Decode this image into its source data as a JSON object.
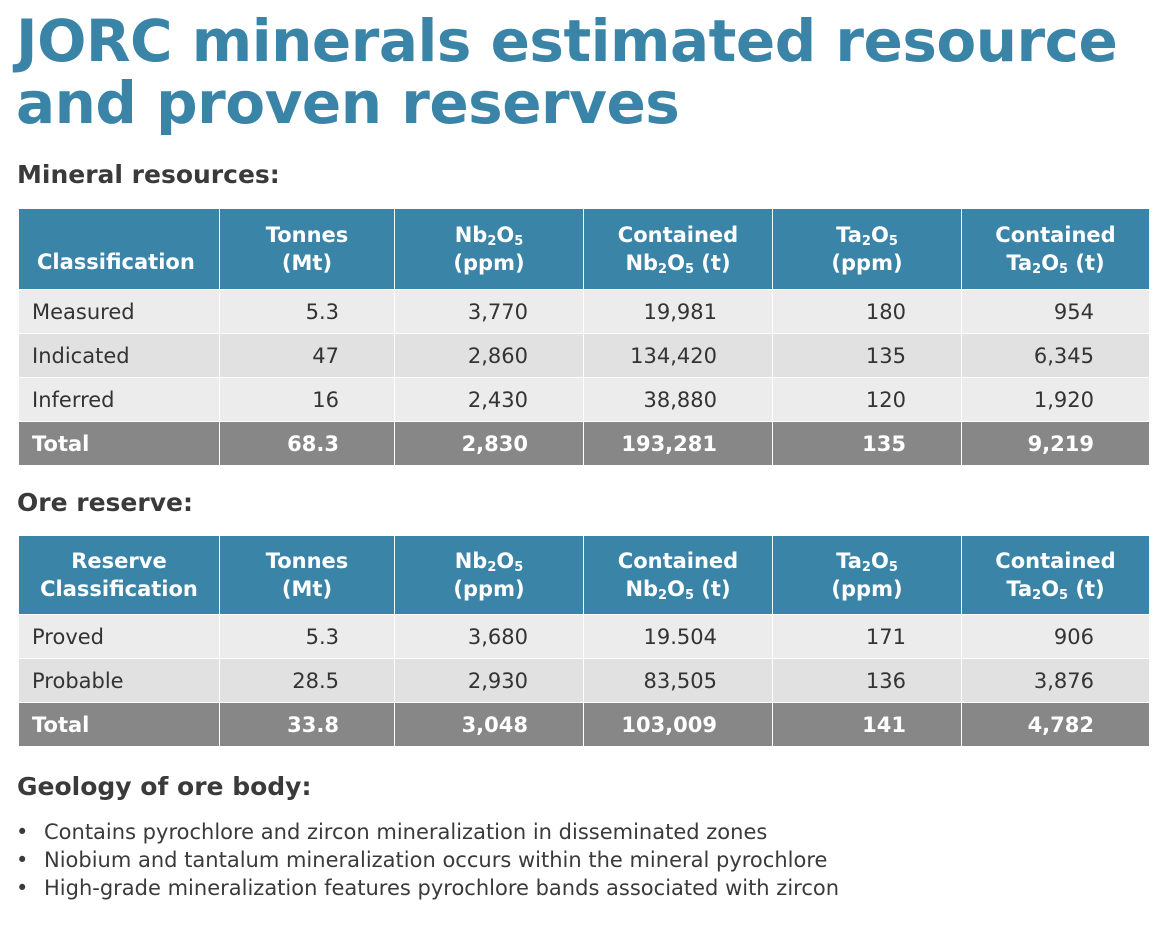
{
  "title": {
    "line1": "JORC minerals estimated resource",
    "line2": "and proven reserves"
  },
  "resources": {
    "heading": "Mineral resources:",
    "columns": [
      {
        "line1": "",
        "line2": "Classification",
        "sub2": ""
      },
      {
        "line1": "Tonnes",
        "line2": "(Mt)"
      },
      {
        "line1": "Nb",
        "sub1a": "2",
        "mid1": "O",
        "sub1b": "5",
        "line2": "(ppm)"
      },
      {
        "line1": "Contained",
        "line2a": "Nb",
        "sub2a": "2",
        "line2b": "O",
        "sub2b": "5",
        "line2c": " (t)"
      },
      {
        "line1": "Ta",
        "sub1a": "2",
        "mid1": "O",
        "sub1b": "5",
        "line2": "(ppm)"
      },
      {
        "line1": "Contained",
        "line2a": "Ta",
        "sub2a": "2",
        "line2b": "O",
        "sub2b": "5",
        "line2c": " (t)"
      }
    ],
    "rows": [
      {
        "classification": "Measured",
        "tonnes": "5.3",
        "nb2o5": "3,770",
        "contained_nb2o5": "19,981",
        "ta2o5": "180",
        "contained_ta2o5": "954"
      },
      {
        "classification": "Indicated",
        "tonnes": "47",
        "nb2o5": "2,860",
        "contained_nb2o5": "134,420",
        "ta2o5": "135",
        "contained_ta2o5": "6,345"
      },
      {
        "classification": "Inferred",
        "tonnes": "16",
        "nb2o5": "2,430",
        "contained_nb2o5": "38,880",
        "ta2o5": "120",
        "contained_ta2o5": "1,920"
      }
    ],
    "total": {
      "classification": "Total",
      "tonnes": "68.3",
      "nb2o5": "2,830",
      "contained_nb2o5": "193,281",
      "ta2o5": "135",
      "contained_ta2o5": "9,219"
    }
  },
  "ore_reserve": {
    "heading": "Ore reserve:",
    "columns": [
      {
        "line1": "Reserve",
        "line2": "Classification"
      },
      {
        "line1": "Tonnes",
        "line2": "(Mt)"
      },
      {
        "line1": "Nb",
        "sub1a": "2",
        "mid1": "O",
        "sub1b": "5",
        "line2": "(ppm)"
      },
      {
        "line1": "Contained",
        "line2a": "Nb",
        "sub2a": "2",
        "line2b": "O",
        "sub2b": "5",
        "line2c": " (t)"
      },
      {
        "line1": "Ta",
        "sub1a": "2",
        "mid1": "O",
        "sub1b": "5",
        "line2": "(ppm)"
      },
      {
        "line1": "Contained",
        "line2a": "Ta",
        "sub2a": "2",
        "line2b": "O",
        "sub2b": "5",
        "line2c": " (t)"
      }
    ],
    "rows": [
      {
        "classification": "Proved",
        "tonnes": "5.3",
        "nb2o5": "3,680",
        "contained_nb2o5": "19.504",
        "ta2o5": "171",
        "contained_ta2o5": "906"
      },
      {
        "classification": "Probable",
        "tonnes": "28.5",
        "nb2o5": "2,930",
        "contained_nb2o5": "83,505",
        "ta2o5": "136",
        "contained_ta2o5": "3,876"
      }
    ],
    "total": {
      "classification": "Total",
      "tonnes": "33.8",
      "nb2o5": "3,048",
      "contained_nb2o5": "103,009",
      "ta2o5": "141",
      "contained_ta2o5": "4,782"
    }
  },
  "geology": {
    "heading": "Geology of ore body:",
    "bullet_symbol": "•",
    "items": [
      "Contains pyrochlore and zircon mineralization in disseminated zones",
      "Niobium and tantalum mineralization occurs within the mineral pyrochlore",
      "High-grade mineralization features pyrochlore bands associated with zircon"
    ]
  },
  "colors": {
    "title": "#3a84a8",
    "header_bg": "#3a84a8",
    "total_bg": "#878787",
    "row_light": "#ececec",
    "row_dark": "#e1e1e1"
  }
}
